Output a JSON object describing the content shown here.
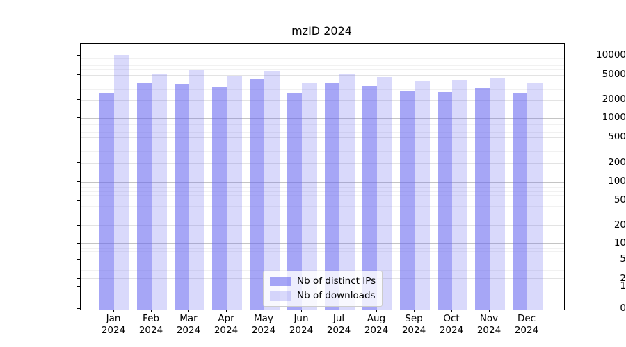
{
  "title": "mzID 2024",
  "legend": {
    "items": [
      {
        "label": "Nb of distinct IPs",
        "color": "rgba(102,102,240,0.58)"
      },
      {
        "label": "Nb of downloads",
        "color": "rgba(102,102,240,0.25)"
      }
    ]
  },
  "y_axis": {
    "ticks": [
      {
        "label": "10000",
        "value": 10000
      },
      {
        "label": "5000",
        "value": 5000
      },
      {
        "label": "2000",
        "value": 2000
      },
      {
        "label": "1000",
        "value": 1000
      },
      {
        "label": "500",
        "value": 500
      },
      {
        "label": "200",
        "value": 200
      },
      {
        "label": "100",
        "value": 100
      },
      {
        "label": "50",
        "value": 50
      },
      {
        "label": "20",
        "value": 20
      },
      {
        "label": "10",
        "value": 10
      },
      {
        "label": "5",
        "value": 5
      },
      {
        "label": "2",
        "value": 2
      },
      {
        "label": "1",
        "value": 1
      },
      {
        "label": "0",
        "value": 0
      }
    ]
  },
  "chart_data": {
    "type": "bar",
    "title": "mzID 2024",
    "categories": [
      "Jan 2024",
      "Feb 2024",
      "Mar 2024",
      "Apr 2024",
      "May 2024",
      "Jun 2024",
      "Jul 2024",
      "Aug 2024",
      "Sep 2024",
      "Oct 2024",
      "Nov 2024",
      "Dec 2024"
    ],
    "series": [
      {
        "name": "Nb of distinct IPs",
        "color": "rgba(102,102,240,0.58)",
        "values": [
          2550,
          3800,
          3600,
          3200,
          4300,
          2600,
          3800,
          3350,
          2800,
          2700,
          3050,
          2550
        ]
      },
      {
        "name": "Nb of downloads",
        "color": "rgba(102,102,240,0.25)",
        "values": [
          10300,
          5100,
          5900,
          4750,
          5800,
          3650,
          5150,
          4650,
          4100,
          4150,
          4450,
          3750
        ]
      }
    ],
    "yscale": "log-like (symlog with 0 baseline)",
    "y_ticks": [
      0,
      1,
      2,
      5,
      10,
      20,
      50,
      100,
      200,
      500,
      1000,
      2000,
      5000,
      10000
    ],
    "ylim": [
      0,
      10500
    ],
    "grid": true,
    "legend_position": "lower center",
    "xlabel": "",
    "ylabel": ""
  }
}
